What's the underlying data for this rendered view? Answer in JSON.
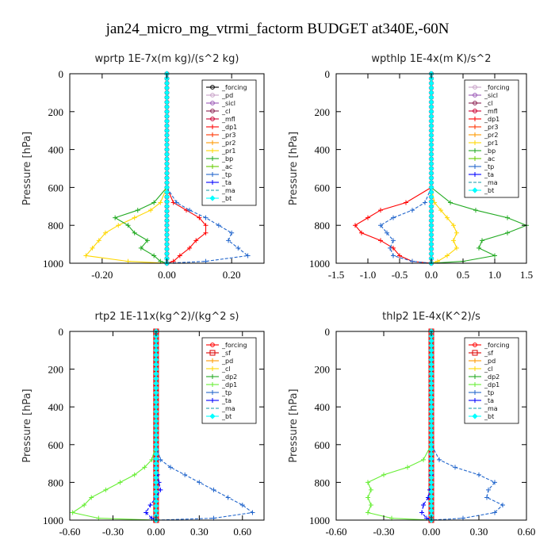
{
  "figure": {
    "title": "jan24_micro_mg_vtrmi_factorm  BUDGET at340E,-60N"
  },
  "chart_data": [
    {
      "type": "line",
      "title": "wprtp  1E-7x(m kg)/(s^2 kg)",
      "ylabel": "Pressure [hPa]",
      "xlim": [
        -0.3,
        0.3
      ],
      "ylim": [
        1000,
        0
      ],
      "grid": false,
      "xticks": [
        -0.2,
        0.0,
        0.2
      ],
      "xticklabels": [
        "-0.20",
        "0.00",
        "0.20"
      ],
      "yticks": [
        0,
        200,
        400,
        600,
        800,
        1000
      ],
      "yticklabels": [
        "0",
        "200",
        "400",
        "600",
        "800",
        "1000"
      ],
      "legend_position": "top-right",
      "series": [
        {
          "name": "_forcing",
          "color": "#000000",
          "marker": "circle",
          "p": [
            0,
            1000
          ],
          "values": [
            0,
            0
          ]
        },
        {
          "name": "_pd",
          "color": "#c8a2c8",
          "marker": "circle",
          "p": [
            0,
            1000
          ],
          "values": [
            0,
            0
          ]
        },
        {
          "name": "_sicl",
          "color": "#9b59b6",
          "marker": "circle",
          "p": [
            0,
            1000
          ],
          "values": [
            0,
            0
          ]
        },
        {
          "name": "_cl",
          "color": "#8b2252",
          "marker": "circle",
          "p": [
            0,
            1000
          ],
          "values": [
            0,
            0
          ]
        },
        {
          "name": "_mfl",
          "color": "#cc0033",
          "marker": "circle",
          "p": [
            0,
            1000
          ],
          "values": [
            0,
            0
          ]
        },
        {
          "name": "_dp1",
          "color": "#ff0000",
          "marker": "plus",
          "p": [
            0,
            600,
            680,
            720,
            760,
            800,
            840,
            880,
            920,
            960,
            990,
            1000
          ],
          "values": [
            0,
            0,
            0.02,
            0.06,
            0.1,
            0.12,
            0.12,
            0.09,
            0.07,
            0.04,
            0.02,
            0
          ]
        },
        {
          "name": "_pr3",
          "color": "#ff3300",
          "marker": "plus",
          "p": [
            0,
            1000
          ],
          "values": [
            0,
            0
          ]
        },
        {
          "name": "_pr2",
          "color": "#ff9900",
          "marker": "plus",
          "p": [
            0,
            1000
          ],
          "values": [
            0,
            0
          ]
        },
        {
          "name": "_pr1",
          "color": "#ffd700",
          "marker": "plus",
          "p": [
            0,
            600,
            680,
            720,
            760,
            800,
            840,
            880,
            920,
            960,
            990,
            1000
          ],
          "values": [
            0,
            0,
            -0.02,
            -0.05,
            -0.1,
            -0.15,
            -0.19,
            -0.21,
            -0.23,
            -0.25,
            -0.12,
            0
          ]
        },
        {
          "name": "_bp",
          "color": "#22aa22",
          "marker": "plus",
          "p": [
            0,
            600,
            680,
            720,
            760,
            800,
            840,
            880,
            920,
            960,
            990,
            1000
          ],
          "values": [
            0,
            0,
            -0.04,
            -0.09,
            -0.16,
            -0.12,
            -0.1,
            -0.06,
            -0.08,
            -0.04,
            -0.02,
            0
          ]
        },
        {
          "name": "_ac",
          "color": "#66cc00",
          "marker": "plus",
          "p": [
            0,
            1000
          ],
          "values": [
            0,
            0
          ]
        },
        {
          "name": "_tp",
          "color": "#2266cc",
          "marker": "plus",
          "p": [
            0,
            600,
            680,
            720,
            760,
            800,
            840,
            880,
            920,
            960,
            990,
            1000
          ],
          "values": [
            0,
            0,
            0.03,
            0.07,
            0.12,
            0.16,
            0.2,
            0.19,
            0.22,
            0.25,
            0.12,
            0
          ]
        },
        {
          "name": "_ta",
          "color": "#0000ff",
          "marker": "plus",
          "p": [
            0,
            1000
          ],
          "values": [
            0,
            0
          ]
        },
        {
          "name": "_ma",
          "color": "#1199aa",
          "marker": "none",
          "p": [
            0,
            1000
          ],
          "values": [
            0,
            0
          ]
        },
        {
          "name": "_bt",
          "color": "#00ffff",
          "marker": "diamond",
          "p": [
            0,
            1000
          ],
          "values": [
            0,
            0
          ]
        }
      ]
    },
    {
      "type": "line",
      "title": "wpthlp  1E-4x(m K)/s^2",
      "ylabel": "Pressure [hPa]",
      "xlim": [
        -1.5,
        1.5
      ],
      "ylim": [
        1000,
        0
      ],
      "grid": false,
      "xticks": [
        -1.5,
        -1.0,
        -0.5,
        0.0,
        0.5,
        1.0,
        1.5
      ],
      "xticklabels": [
        "-1.5",
        "-1.0",
        "-0.5",
        "0.0",
        "0.5",
        "1.0",
        "1.5"
      ],
      "yticks": [
        0,
        200,
        400,
        600,
        800,
        1000
      ],
      "yticklabels": [
        "0",
        "200",
        "400",
        "600",
        "800",
        "1000"
      ],
      "legend_position": "top-right",
      "series": [
        {
          "name": "_forcing",
          "color": "#c8a2c8",
          "marker": "circle",
          "p": [
            0,
            1000
          ],
          "values": [
            0,
            0
          ]
        },
        {
          "name": "_sicl",
          "color": "#9b59b6",
          "marker": "circle",
          "p": [
            0,
            1000
          ],
          "values": [
            0,
            0
          ]
        },
        {
          "name": "_cl",
          "color": "#8b2252",
          "marker": "circle",
          "p": [
            0,
            1000
          ],
          "values": [
            0,
            0
          ]
        },
        {
          "name": "_mfl",
          "color": "#cc0033",
          "marker": "circle",
          "p": [
            0,
            1000
          ],
          "values": [
            0,
            0
          ]
        },
        {
          "name": "_dp1",
          "color": "#ff0000",
          "marker": "plus",
          "p": [
            0,
            600,
            680,
            720,
            760,
            800,
            840,
            880,
            920,
            960,
            990,
            1000
          ],
          "values": [
            0,
            0,
            -0.4,
            -0.8,
            -1.0,
            -1.2,
            -1.1,
            -0.8,
            -0.6,
            -0.5,
            -0.3,
            0
          ]
        },
        {
          "name": "_pr3",
          "color": "#ff3300",
          "marker": "plus",
          "p": [
            0,
            1000
          ],
          "values": [
            0,
            0
          ]
        },
        {
          "name": "_pr2",
          "color": "#ff9900",
          "marker": "plus",
          "p": [
            0,
            1000
          ],
          "values": [
            0,
            0
          ]
        },
        {
          "name": "_pr1",
          "color": "#ffd700",
          "marker": "plus",
          "p": [
            0,
            600,
            680,
            720,
            760,
            800,
            840,
            880,
            920,
            960,
            990,
            1000
          ],
          "values": [
            0,
            0,
            0.05,
            0.15,
            0.25,
            0.35,
            0.4,
            0.35,
            0.4,
            0.25,
            0.1,
            0
          ]
        },
        {
          "name": "_bp",
          "color": "#22aa22",
          "marker": "plus",
          "p": [
            0,
            600,
            680,
            720,
            760,
            800,
            840,
            880,
            920,
            960,
            990,
            1000
          ],
          "values": [
            0,
            0,
            0.3,
            0.7,
            1.2,
            1.5,
            1.2,
            0.8,
            0.75,
            1.0,
            0.5,
            0
          ]
        },
        {
          "name": "_ac",
          "color": "#66cc00",
          "marker": "plus",
          "p": [
            0,
            1000
          ],
          "values": [
            0,
            0
          ]
        },
        {
          "name": "_tp",
          "color": "#2266cc",
          "marker": "plus",
          "p": [
            0,
            600,
            680,
            720,
            760,
            800,
            840,
            880,
            920,
            960,
            990,
            1000
          ],
          "values": [
            0,
            0,
            -0.1,
            -0.3,
            -0.6,
            -0.8,
            -0.7,
            -0.6,
            -0.65,
            -0.6,
            -0.3,
            0
          ]
        },
        {
          "name": "_ta",
          "color": "#0000ff",
          "marker": "plus",
          "p": [
            0,
            1000
          ],
          "values": [
            0,
            0
          ]
        },
        {
          "name": "_ma",
          "color": "#1199aa",
          "marker": "none",
          "p": [
            0,
            1000
          ],
          "values": [
            0,
            0
          ]
        },
        {
          "name": "_bt",
          "color": "#00ffff",
          "marker": "diamond",
          "p": [
            0,
            1000
          ],
          "values": [
            0,
            0
          ]
        }
      ]
    },
    {
      "type": "line",
      "title": "rtp2  1E-11x(kg^2)/(kg^2 s)",
      "ylabel": "Pressure [hPa]",
      "xlim": [
        -0.6,
        0.75
      ],
      "ylim": [
        1000,
        0
      ],
      "grid": false,
      "xticks": [
        -0.6,
        -0.3,
        0.0,
        0.3,
        0.6
      ],
      "xticklabels": [
        "-0.60",
        "-0.30",
        "0.00",
        "0.30",
        "0.60"
      ],
      "yticks": [
        0,
        200,
        400,
        600,
        800,
        1000
      ],
      "yticklabels": [
        "0",
        "200",
        "400",
        "600",
        "800",
        "1000"
      ],
      "legend_position": "top-right",
      "series": [
        {
          "name": "_forcing",
          "color": "#ff0000",
          "marker": "circle",
          "p": [
            0,
            1000
          ],
          "values": [
            0,
            0
          ]
        },
        {
          "name": "_sf",
          "color": "#dd0000",
          "marker": "square",
          "p": [
            0,
            1000
          ],
          "values": [
            0,
            0
          ]
        },
        {
          "name": "_pd",
          "color": "#ff9900",
          "marker": "plus",
          "p": [
            0,
            1000
          ],
          "values": [
            0,
            0
          ]
        },
        {
          "name": "_cl",
          "color": "#ffd700",
          "marker": "plus",
          "p": [
            0,
            1000
          ],
          "values": [
            0,
            0
          ]
        },
        {
          "name": "_dp2",
          "color": "#22aa22",
          "marker": "plus",
          "p": [
            0,
            1000
          ],
          "values": [
            0,
            0
          ]
        },
        {
          "name": "_dp1",
          "color": "#66ee33",
          "marker": "plus",
          "p": [
            0,
            600,
            680,
            720,
            760,
            800,
            840,
            880,
            920,
            960,
            990,
            1000
          ],
          "values": [
            0,
            0,
            -0.03,
            -0.08,
            -0.15,
            -0.25,
            -0.35,
            -0.45,
            -0.5,
            -0.58,
            -0.4,
            0
          ]
        },
        {
          "name": "_tp",
          "color": "#2266cc",
          "marker": "plus",
          "p": [
            0,
            600,
            680,
            720,
            760,
            800,
            840,
            880,
            920,
            960,
            990,
            1000
          ],
          "values": [
            0,
            0,
            0.03,
            0.1,
            0.2,
            0.3,
            0.4,
            0.5,
            0.6,
            0.67,
            0.4,
            0
          ]
        },
        {
          "name": "_ta",
          "color": "#0000ff",
          "marker": "plus",
          "p": [
            0,
            600,
            680,
            720,
            760,
            800,
            840,
            880,
            920,
            960,
            990,
            1000
          ],
          "values": [
            0,
            0,
            0,
            0,
            0.01,
            0.02,
            0.03,
            0.0,
            -0.04,
            -0.07,
            -0.03,
            0
          ]
        },
        {
          "name": "_ma",
          "color": "#1199aa",
          "marker": "none",
          "p": [
            0,
            1000
          ],
          "values": [
            0,
            0
          ]
        },
        {
          "name": "_bt",
          "color": "#00ffff",
          "marker": "diamond",
          "p": [
            0,
            1000
          ],
          "values": [
            0,
            0
          ]
        }
      ]
    },
    {
      "type": "line",
      "title": "thlp2  1E-4x(K^2)/s",
      "ylabel": "Pressure [hPa]",
      "xlim": [
        -0.6,
        0.6
      ],
      "ylim": [
        1000,
        0
      ],
      "grid": false,
      "xticks": [
        -0.6,
        -0.3,
        0.0,
        0.3,
        0.6
      ],
      "xticklabels": [
        "-0.60",
        "-0.30",
        "0.00",
        "0.30",
        "0.60"
      ],
      "yticks": [
        0,
        200,
        400,
        600,
        800,
        1000
      ],
      "yticklabels": [
        "0",
        "200",
        "400",
        "600",
        "800",
        "1000"
      ],
      "legend_position": "top-right",
      "series": [
        {
          "name": "_forcing",
          "color": "#ff0000",
          "marker": "circle",
          "p": [
            0,
            1000
          ],
          "values": [
            0,
            0
          ]
        },
        {
          "name": "_sf",
          "color": "#dd0000",
          "marker": "square",
          "p": [
            0,
            1000
          ],
          "values": [
            0,
            0
          ]
        },
        {
          "name": "_pd",
          "color": "#ff9900",
          "marker": "plus",
          "p": [
            0,
            1000
          ],
          "values": [
            0,
            0
          ]
        },
        {
          "name": "_cl",
          "color": "#ffd700",
          "marker": "plus",
          "p": [
            0,
            1000
          ],
          "values": [
            0,
            0
          ]
        },
        {
          "name": "_dp2",
          "color": "#22aa22",
          "marker": "plus",
          "p": [
            0,
            1000
          ],
          "values": [
            0,
            0
          ]
        },
        {
          "name": "_dp1",
          "color": "#66ee33",
          "marker": "plus",
          "p": [
            0,
            600,
            680,
            720,
            760,
            800,
            840,
            880,
            920,
            960,
            990,
            1000
          ],
          "values": [
            0,
            0,
            -0.05,
            -0.15,
            -0.3,
            -0.4,
            -0.38,
            -0.4,
            -0.38,
            -0.4,
            -0.25,
            0
          ]
        },
        {
          "name": "_tp",
          "color": "#2266cc",
          "marker": "plus",
          "p": [
            0,
            600,
            680,
            720,
            760,
            800,
            840,
            880,
            920,
            960,
            990,
            1000
          ],
          "values": [
            0,
            0,
            0.05,
            0.15,
            0.3,
            0.4,
            0.36,
            0.35,
            0.45,
            0.4,
            0.2,
            0
          ]
        },
        {
          "name": "_ta",
          "color": "#0000ff",
          "marker": "plus",
          "p": [
            0,
            600,
            680,
            720,
            760,
            800,
            840,
            880,
            920,
            960,
            990,
            1000
          ],
          "values": [
            0,
            0,
            0,
            0,
            0,
            0,
            -0.01,
            -0.02,
            -0.05,
            -0.06,
            -0.03,
            0
          ]
        },
        {
          "name": "_ma",
          "color": "#1199aa",
          "marker": "none",
          "p": [
            0,
            1000
          ],
          "values": [
            0,
            0
          ]
        },
        {
          "name": "_bt",
          "color": "#00ffff",
          "marker": "diamond",
          "p": [
            0,
            1000
          ],
          "values": [
            0,
            0
          ]
        }
      ]
    }
  ]
}
